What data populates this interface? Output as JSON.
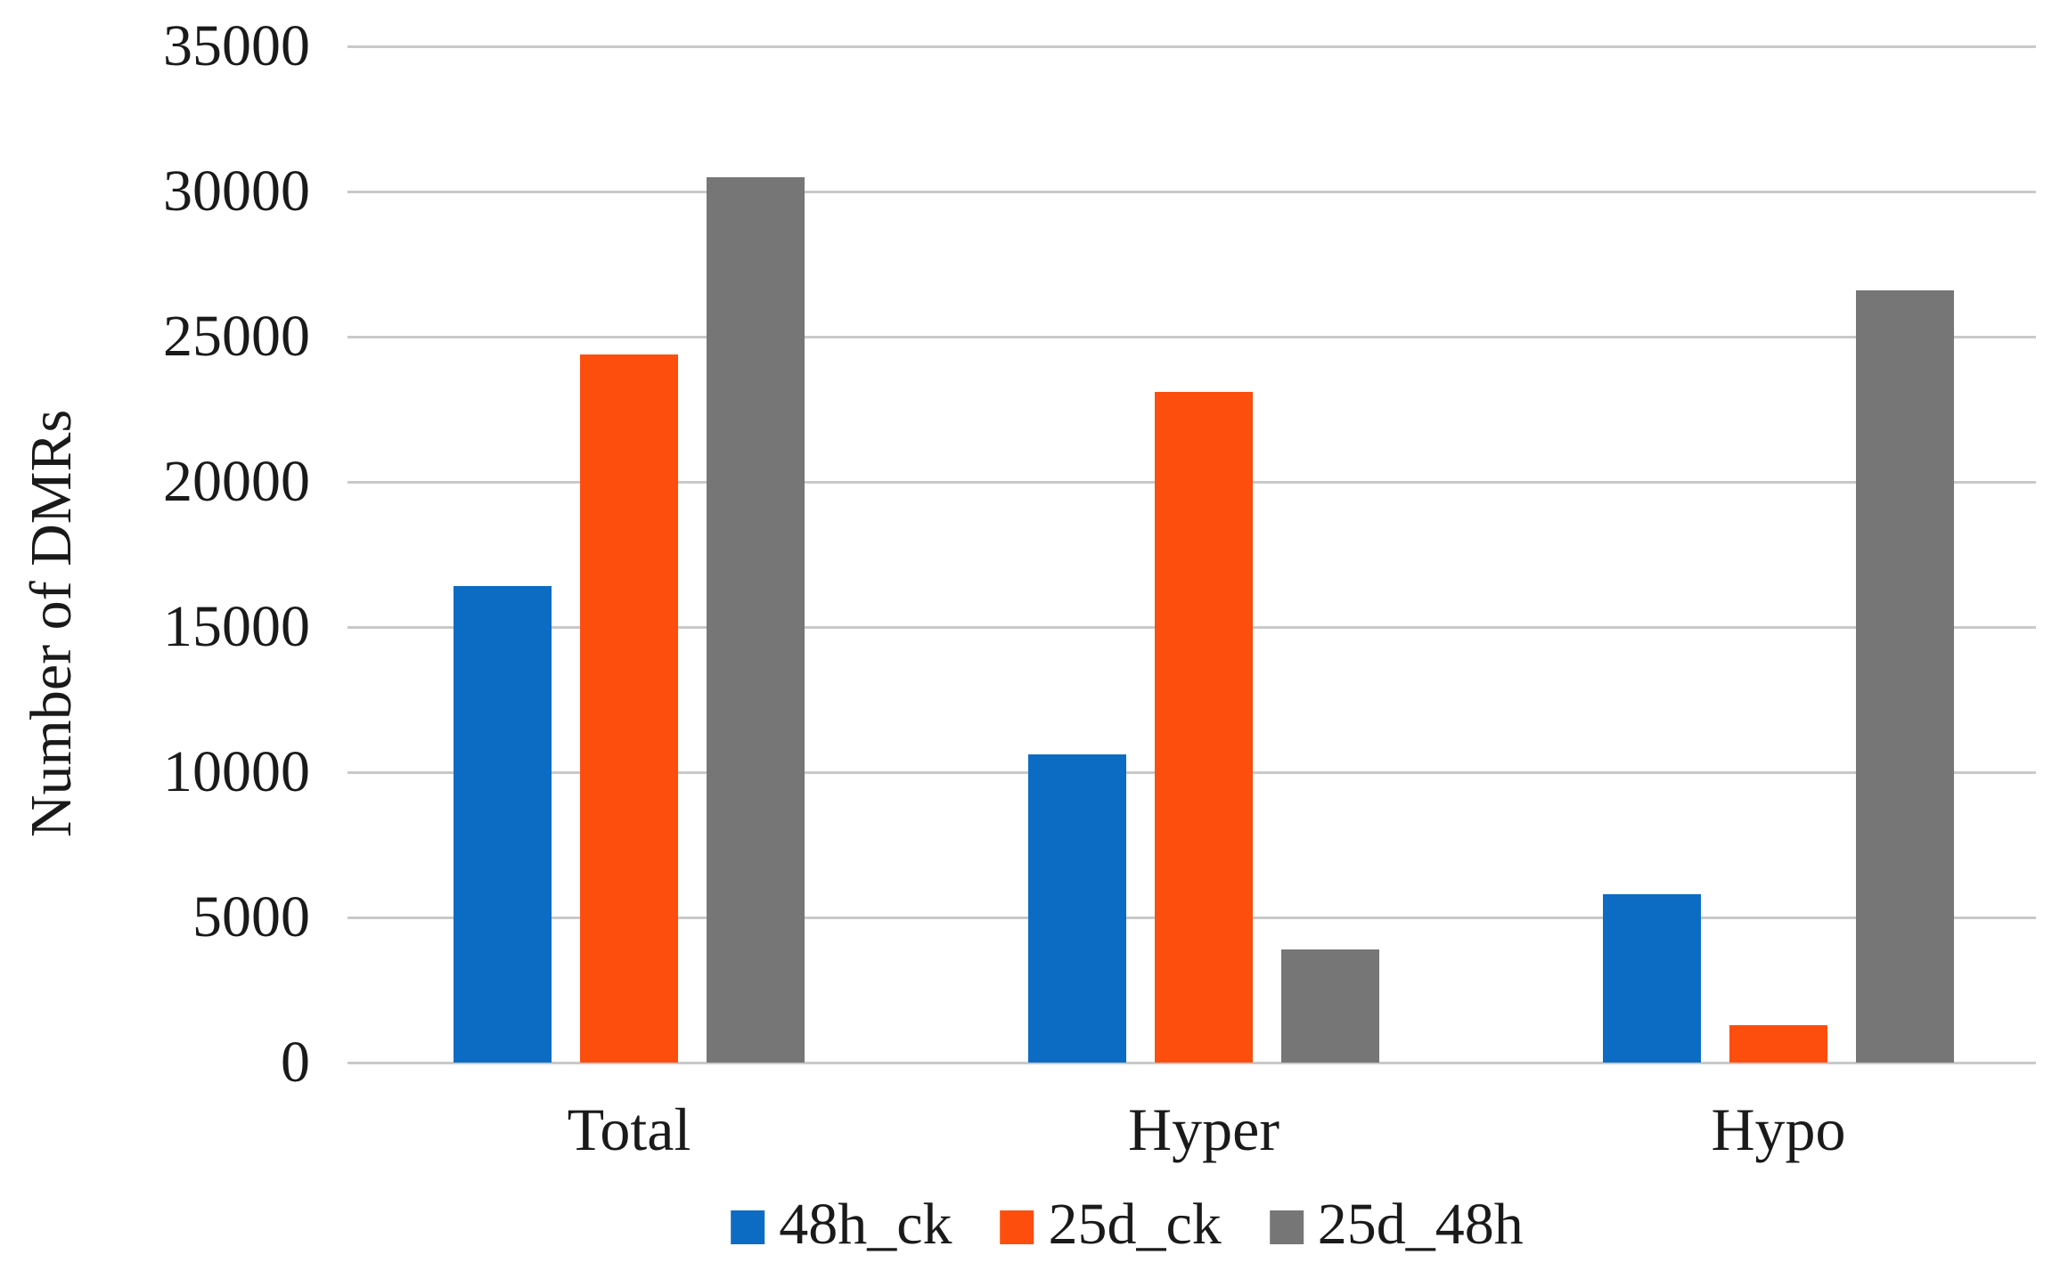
{
  "figure": {
    "background": "#ffffff",
    "text_color": "#1a1a1a",
    "gridline_color": "#c9c9c9"
  },
  "chart_data": {
    "type": "bar",
    "title": "",
    "xlabel": "",
    "ylabel": "Number of DMRs",
    "categories": [
      "Total",
      "Hyper",
      "Hypo"
    ],
    "series": [
      {
        "name": "48h_ck",
        "color": "#0c6cc4",
        "values": [
          16400,
          10600,
          5800
        ]
      },
      {
        "name": "25d_ck",
        "color": "#fe4e0d",
        "values": [
          24400,
          23100,
          1300
        ]
      },
      {
        "name": "25d_48h",
        "color": "#767676",
        "values": [
          30500,
          3900,
          26600
        ]
      }
    ],
    "ylim": [
      0,
      35000
    ],
    "ytick_step": 5000,
    "yticks": [
      "0",
      "5000",
      "10000",
      "15000",
      "20000",
      "25000",
      "30000",
      "35000"
    ],
    "grid": true,
    "legend_position": "bottom"
  }
}
